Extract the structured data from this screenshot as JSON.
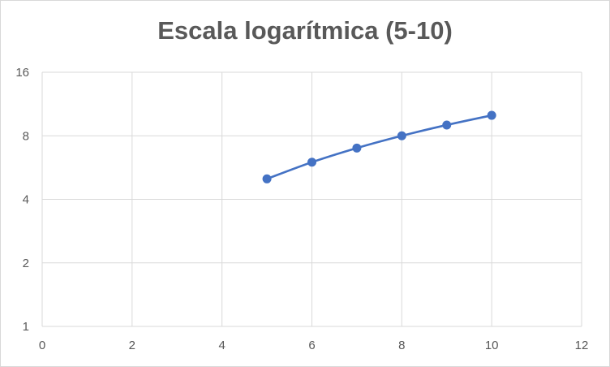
{
  "chart_data": {
    "type": "scatter",
    "title": "Escala logarítmica (5-10)",
    "xlabel": "",
    "ylabel": "",
    "x_scale": "linear",
    "y_scale": "log2",
    "xlim": [
      0,
      12
    ],
    "ylim": [
      1,
      16
    ],
    "x_ticks": [
      "0",
      "2",
      "4",
      "6",
      "8",
      "10",
      "12"
    ],
    "y_ticks": [
      "1",
      "2",
      "4",
      "8",
      "16"
    ],
    "grid": true,
    "legend": "none",
    "series": [
      {
        "color": "#4472c4",
        "line": "smooth",
        "marker": "circle",
        "points": [
          {
            "x": 5,
            "y": 5
          },
          {
            "x": 6,
            "y": 6
          },
          {
            "x": 7,
            "y": 7
          },
          {
            "x": 8,
            "y": 8
          },
          {
            "x": 9,
            "y": 9
          },
          {
            "x": 10,
            "y": 10
          }
        ]
      }
    ]
  }
}
